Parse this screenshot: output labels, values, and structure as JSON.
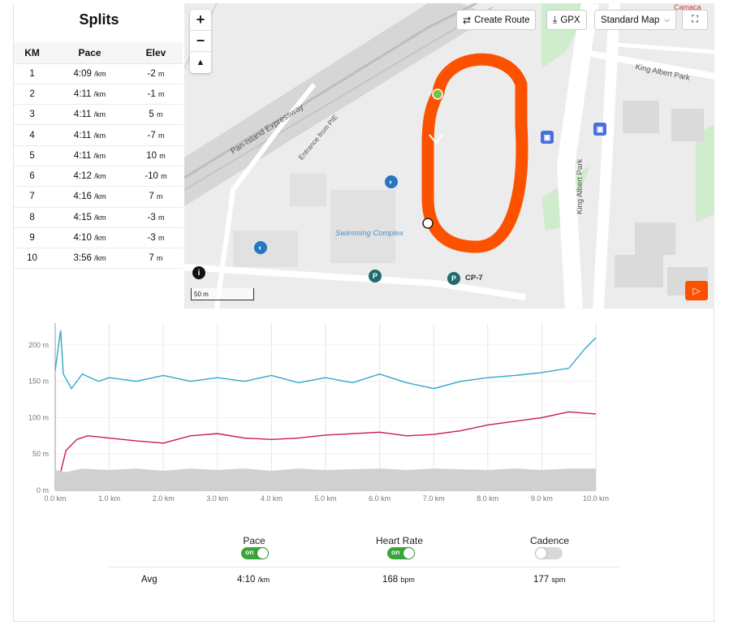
{
  "splits": {
    "title": "Splits",
    "headers": [
      "KM",
      "Pace",
      "Elev"
    ],
    "rows": [
      {
        "km": "1",
        "pace": "4:09",
        "pace_unit": "/km",
        "elev": "-2",
        "elev_unit": "m"
      },
      {
        "km": "2",
        "pace": "4:11",
        "pace_unit": "/km",
        "elev": "-1",
        "elev_unit": "m"
      },
      {
        "km": "3",
        "pace": "4:11",
        "pace_unit": "/km",
        "elev": "5",
        "elev_unit": "m"
      },
      {
        "km": "4",
        "pace": "4:11",
        "pace_unit": "/km",
        "elev": "-7",
        "elev_unit": "m"
      },
      {
        "km": "5",
        "pace": "4:11",
        "pace_unit": "/km",
        "elev": "10",
        "elev_unit": "m"
      },
      {
        "km": "6",
        "pace": "4:12",
        "pace_unit": "/km",
        "elev": "-10",
        "elev_unit": "m"
      },
      {
        "km": "7",
        "pace": "4:16",
        "pace_unit": "/km",
        "elev": "7",
        "elev_unit": "m"
      },
      {
        "km": "8",
        "pace": "4:15",
        "pace_unit": "/km",
        "elev": "-3",
        "elev_unit": "m"
      },
      {
        "km": "9",
        "pace": "4:10",
        "pace_unit": "/km",
        "elev": "-3",
        "elev_unit": "m"
      },
      {
        "km": "10",
        "pace": "3:56",
        "pace_unit": "/km",
        "elev": "7",
        "elev_unit": "m"
      }
    ]
  },
  "map": {
    "buttons": {
      "create_route": "Create Route",
      "gpx": "GPX",
      "map_type": "Standard Map"
    },
    "labels": {
      "expressway": "Pan-Island Expressway",
      "entrance": "Entrance from PIE",
      "park1": "King Albert Park",
      "park2": "King Albert Park",
      "complex": "Swimming Complex",
      "carpark": "CP-7",
      "edge": "Camaca"
    },
    "scale": "50 m",
    "icons": [
      "zoom-in-icon",
      "zoom-out-icon",
      "compass-icon",
      "info-icon",
      "play-icon",
      "fullscreen-icon",
      "route-icon",
      "download-icon",
      "chevron-down-icon"
    ],
    "route_color": "#fc5200"
  },
  "chart_data": {
    "type": "line",
    "x_ticks": [
      "0.0 km",
      "1.0 km",
      "2.0 km",
      "3.0 km",
      "4.0 km",
      "5.0 km",
      "6.0 km",
      "7.0 km",
      "8.0 km",
      "9.0 km",
      "10.0 km"
    ],
    "y_ticks": [
      "0 m",
      "50 m",
      "100 m",
      "150 m",
      "200 m"
    ],
    "xlim": [
      0,
      10
    ],
    "ylim": [
      0,
      230
    ],
    "grid": true,
    "series": [
      {
        "color": "#2ea8cc",
        "x": [
          0,
          0.1,
          0.15,
          0.3,
          0.5,
          0.8,
          1.0,
          1.5,
          2.0,
          2.5,
          3.0,
          3.5,
          4.0,
          4.5,
          5.0,
          5.5,
          6.0,
          6.5,
          7.0,
          7.5,
          8.0,
          8.5,
          9.0,
          9.5,
          9.8,
          10.0
        ],
        "y": [
          165,
          220,
          160,
          140,
          160,
          150,
          155,
          150,
          158,
          150,
          155,
          150,
          158,
          148,
          155,
          148,
          160,
          148,
          140,
          150,
          155,
          158,
          162,
          168,
          195,
          210
        ]
      },
      {
        "color": "#c8175e",
        "x": [
          0,
          0.1,
          0.2,
          0.4,
          0.6,
          1.0,
          1.5,
          2.0,
          2.5,
          3.0,
          3.5,
          4.0,
          4.5,
          5.0,
          5.5,
          6.0,
          6.5,
          7.0,
          7.5,
          8.0,
          8.5,
          9.0,
          9.5,
          10.0
        ],
        "y": [
          10,
          25,
          55,
          70,
          75,
          72,
          68,
          65,
          75,
          78,
          72,
          70,
          72,
          76,
          78,
          80,
          75,
          77,
          82,
          90,
          95,
          100,
          108,
          105
        ]
      },
      {
        "color": "#d0d0d0",
        "x": [
          0,
          0.2,
          0.5,
          1.0,
          1.5,
          2.0,
          2.5,
          3.0,
          3.5,
          4.0,
          4.5,
          5.0,
          5.5,
          6.0,
          6.5,
          7.0,
          7.5,
          8.0,
          8.5,
          9.0,
          9.5,
          10.0
        ],
        "y": [
          28,
          25,
          30,
          28,
          30,
          27,
          30,
          28,
          30,
          27,
          30,
          28,
          29,
          30,
          28,
          30,
          29,
          28,
          30,
          28,
          30,
          30
        ]
      }
    ]
  },
  "stats": {
    "toggles": [
      {
        "label": "Pace",
        "state": "on"
      },
      {
        "label": "Heart Rate",
        "state": "on"
      },
      {
        "label": "Cadence",
        "state": ""
      }
    ],
    "avg_label": "Avg",
    "avg": {
      "pace": "4:10",
      "pace_unit": "/km",
      "hr": "168",
      "hr_unit": "bpm",
      "cadence": "177",
      "cadence_unit": "spm"
    }
  }
}
